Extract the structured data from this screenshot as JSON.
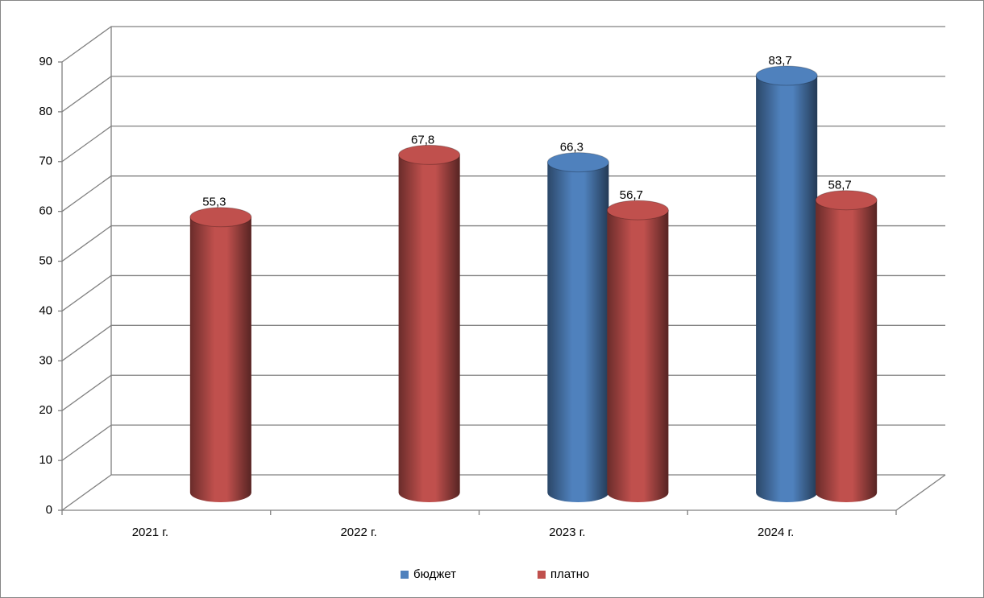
{
  "chart_data": {
    "type": "bar3d",
    "categories": [
      "2021 г.",
      "2022 г.",
      "2023 г.",
      "2024 г."
    ],
    "series": [
      {
        "name": "бюджет",
        "color": "#4f81bd",
        "values": [
          null,
          null,
          66.3,
          83.7
        ],
        "value_labels": [
          null,
          null,
          "66,3",
          "83,7"
        ]
      },
      {
        "name": "платно",
        "color": "#c0504d",
        "values": [
          55.3,
          67.8,
          56.7,
          58.7
        ],
        "value_labels": [
          "55,3",
          "67,8",
          "56,7",
          "58,7"
        ]
      }
    ],
    "ylim": [
      0,
      90
    ],
    "yticks": [
      0,
      10,
      20,
      30,
      40,
      50,
      60,
      70,
      80,
      90
    ],
    "grid": true,
    "legend": "bottom"
  }
}
